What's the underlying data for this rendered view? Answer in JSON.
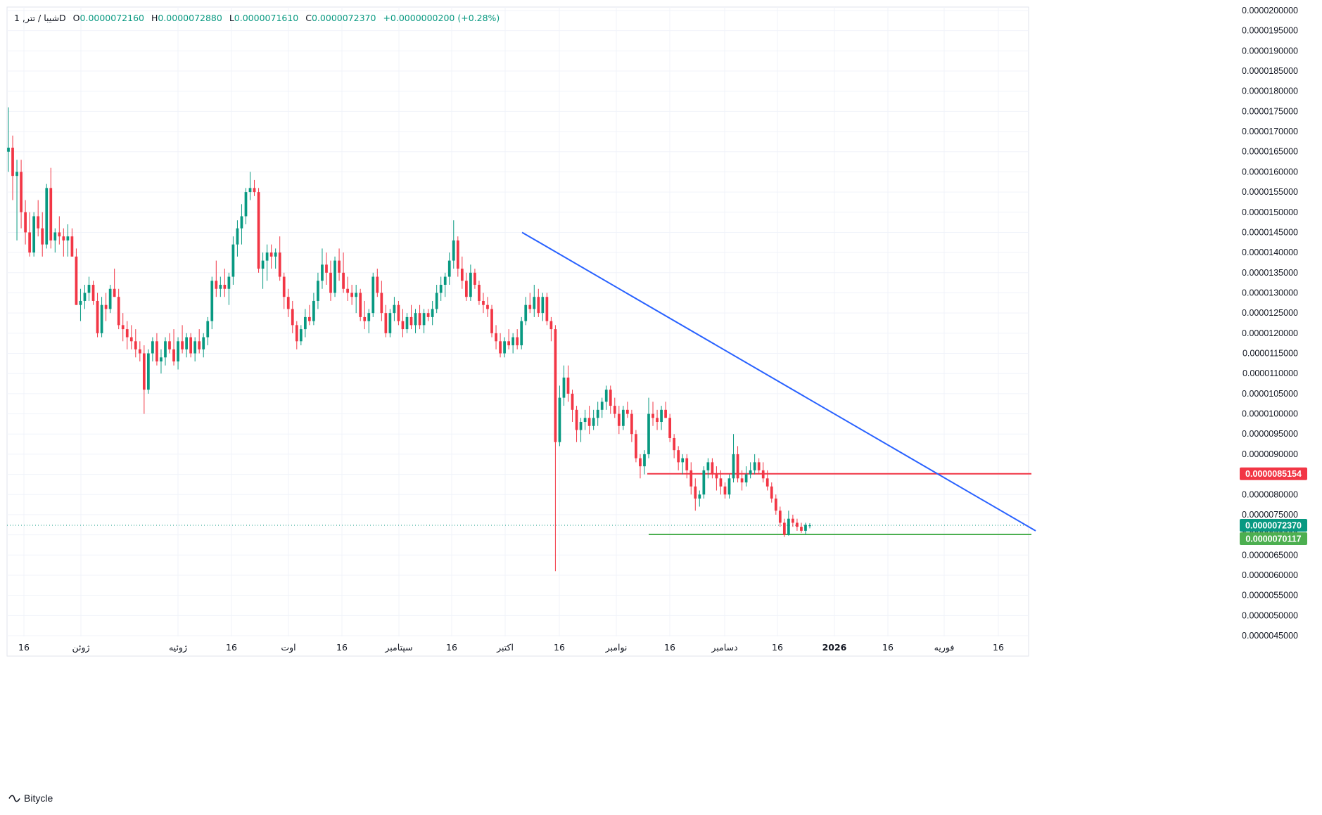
{
  "legend": {
    "symbol": "1 ,شیبا / تتر",
    "interval": "D",
    "open_label": "O",
    "open": "0.0000072160",
    "high_label": "H",
    "high": "0.0000072880",
    "low_label": "L",
    "low": "0.0000071610",
    "close_label": "C",
    "close": "0.0000072370",
    "change": "+0.0000000200 (+0.28%)"
  },
  "brand": {
    "name": "Bitycle"
  },
  "colors": {
    "up": "#089981",
    "down": "#f23645",
    "trendline": "#2962ff",
    "resistance": "#f23645",
    "support": "#4caf50"
  },
  "chart_data": {
    "type": "candlestick",
    "y_axis": {
      "min": 4.5e-06,
      "max": 2e-05,
      "tick_labels": [
        "0.0000200000",
        "0.0000195000",
        "0.0000190000",
        "0.0000185000",
        "0.0000180000",
        "0.0000175000",
        "0.0000170000",
        "0.0000165000",
        "0.0000160000",
        "0.0000155000",
        "0.0000150000",
        "0.0000145000",
        "0.0000140000",
        "0.0000135000",
        "0.0000130000",
        "0.0000125000",
        "0.0000120000",
        "0.0000115000",
        "0.0000110000",
        "0.0000105000",
        "0.0000100000",
        "0.0000095000",
        "0.0000090000",
        "0.0000085000",
        "0.0000080000",
        "0.0000075000",
        "0.0000070000",
        "0.0000065000",
        "0.0000060000",
        "0.0000055000",
        "0.0000050000",
        "0.0000045000"
      ]
    },
    "x_axis": {
      "tick_labels": [
        "16",
        "ژوئن",
        "ژوئیه",
        "16",
        "اوت",
        "16",
        "سپتامبر",
        "16",
        "اکتبر",
        "16",
        "نوامبر",
        "16",
        "دسامبر",
        "16",
        "2026",
        "16",
        "فوریه",
        "16"
      ]
    },
    "price_badges": [
      {
        "name": "resistance",
        "value": "0.0000085154"
      },
      {
        "name": "last",
        "value": "0.0000072370"
      },
      {
        "name": "support",
        "value": "0.0000070117"
      }
    ],
    "levels": {
      "resistance": 8.5154e-06,
      "support": 7.0117e-06,
      "last": 7.237e-06
    },
    "trendline": {
      "start": 1.45e-05,
      "end": 7.1e-06
    },
    "candles": [
      [
        16.5,
        17.6,
        16.0,
        16.6
      ],
      [
        16.6,
        16.9,
        15.3,
        15.9
      ],
      [
        15.9,
        16.3,
        14.3,
        16.0
      ],
      [
        16.0,
        16.3,
        14.6,
        15.0
      ],
      [
        15.0,
        15.3,
        14.2,
        14.5
      ],
      [
        14.5,
        15.0,
        13.9,
        14.0
      ],
      [
        14.0,
        15.0,
        13.9,
        14.9
      ],
      [
        14.9,
        15.3,
        14.4,
        14.6
      ],
      [
        14.6,
        15.0,
        13.9,
        14.2
      ],
      [
        14.2,
        15.7,
        14.1,
        15.6
      ],
      [
        15.6,
        16.1,
        14.1,
        14.3
      ],
      [
        14.3,
        14.6,
        14.0,
        14.5
      ],
      [
        14.5,
        14.9,
        14.2,
        14.4
      ],
      [
        14.4,
        14.6,
        13.9,
        14.3
      ],
      [
        14.3,
        14.7,
        13.9,
        14.4
      ],
      [
        14.4,
        14.6,
        13.9,
        13.9
      ],
      [
        13.9,
        14.1,
        12.7,
        12.7
      ],
      [
        12.7,
        13.1,
        12.3,
        12.8
      ],
      [
        12.8,
        13.2,
        12.6,
        13.0
      ],
      [
        13.0,
        13.4,
        12.8,
        13.2
      ],
      [
        13.2,
        13.3,
        12.7,
        12.8
      ],
      [
        12.8,
        13.0,
        11.9,
        12.0
      ],
      [
        12.0,
        12.9,
        11.9,
        12.7
      ],
      [
        12.7,
        13.0,
        12.3,
        12.6
      ],
      [
        12.6,
        13.2,
        12.5,
        13.1
      ],
      [
        13.1,
        13.6,
        12.9,
        12.9
      ],
      [
        12.9,
        13.1,
        12.1,
        12.2
      ],
      [
        12.2,
        12.5,
        11.8,
        12.1
      ],
      [
        12.1,
        12.3,
        11.6,
        11.9
      ],
      [
        11.9,
        12.2,
        11.6,
        11.8
      ],
      [
        11.8,
        12.1,
        11.4,
        11.6
      ],
      [
        11.6,
        11.8,
        11.3,
        11.5
      ],
      [
        11.5,
        11.7,
        10.0,
        10.6
      ],
      [
        10.6,
        11.6,
        10.5,
        11.5
      ],
      [
        11.5,
        11.9,
        11.3,
        11.8
      ],
      [
        11.8,
        12.0,
        11.2,
        11.3
      ],
      [
        11.3,
        11.6,
        11.0,
        11.4
      ],
      [
        11.4,
        11.9,
        11.2,
        11.8
      ],
      [
        11.8,
        12.0,
        11.5,
        11.6
      ],
      [
        11.6,
        12.1,
        11.2,
        11.3
      ],
      [
        11.3,
        11.9,
        11.1,
        11.8
      ],
      [
        11.8,
        12.2,
        11.5,
        11.6
      ],
      [
        11.6,
        12.0,
        11.4,
        11.9
      ],
      [
        11.9,
        12.0,
        11.4,
        11.5
      ],
      [
        11.5,
        11.9,
        11.3,
        11.8
      ],
      [
        11.8,
        12.1,
        11.5,
        11.6
      ],
      [
        11.6,
        12.0,
        11.4,
        11.9
      ],
      [
        11.9,
        12.4,
        11.7,
        12.3
      ],
      [
        12.3,
        13.4,
        12.1,
        13.3
      ],
      [
        13.3,
        13.8,
        12.9,
        13.1
      ],
      [
        13.1,
        13.4,
        12.9,
        13.2
      ],
      [
        13.2,
        13.6,
        12.9,
        13.1
      ],
      [
        13.1,
        13.5,
        12.7,
        13.4
      ],
      [
        13.4,
        14.4,
        13.2,
        14.2
      ],
      [
        14.2,
        14.8,
        13.9,
        14.6
      ],
      [
        14.6,
        15.2,
        14.2,
        14.9
      ],
      [
        14.9,
        15.6,
        14.7,
        15.5
      ],
      [
        15.5,
        16.0,
        15.3,
        15.6
      ],
      [
        15.6,
        15.8,
        15.4,
        15.5
      ],
      [
        15.5,
        15.6,
        13.5,
        13.6
      ],
      [
        13.6,
        14.0,
        13.1,
        13.8
      ],
      [
        13.8,
        14.2,
        13.3,
        14.0
      ],
      [
        14.0,
        14.2,
        13.6,
        13.9
      ],
      [
        13.9,
        14.1,
        13.6,
        14.0
      ],
      [
        14.0,
        14.4,
        13.3,
        13.4
      ],
      [
        13.4,
        13.5,
        12.6,
        12.9
      ],
      [
        12.9,
        13.1,
        12.4,
        12.6
      ],
      [
        12.6,
        12.8,
        12.0,
        12.2
      ],
      [
        12.2,
        12.3,
        11.6,
        11.8
      ],
      [
        11.8,
        12.2,
        11.7,
        12.1
      ],
      [
        12.1,
        12.6,
        11.9,
        12.4
      ],
      [
        12.4,
        12.7,
        12.2,
        12.3
      ],
      [
        12.3,
        13.0,
        12.2,
        12.8
      ],
      [
        12.8,
        13.5,
        12.6,
        13.3
      ],
      [
        13.3,
        14.1,
        13.1,
        13.7
      ],
      [
        13.7,
        14.0,
        13.2,
        13.5
      ],
      [
        13.5,
        13.8,
        12.8,
        13.0
      ],
      [
        13.0,
        13.9,
        12.9,
        13.8
      ],
      [
        13.8,
        14.1,
        13.3,
        13.5
      ],
      [
        13.5,
        14.0,
        13.0,
        13.1
      ],
      [
        13.1,
        13.4,
        12.8,
        13.0
      ],
      [
        13.0,
        13.2,
        12.7,
        12.9
      ],
      [
        12.9,
        13.2,
        12.5,
        13.0
      ],
      [
        13.0,
        13.1,
        12.3,
        12.4
      ],
      [
        12.4,
        12.8,
        12.1,
        12.3
      ],
      [
        12.3,
        12.6,
        12.0,
        12.5
      ],
      [
        12.5,
        13.5,
        12.4,
        13.4
      ],
      [
        13.4,
        13.6,
        12.9,
        13.0
      ],
      [
        13.0,
        13.3,
        12.3,
        12.5
      ],
      [
        12.5,
        12.7,
        11.9,
        12.0
      ],
      [
        12.0,
        12.6,
        11.9,
        12.5
      ],
      [
        12.5,
        12.9,
        12.3,
        12.7
      ],
      [
        12.7,
        12.8,
        12.2,
        12.3
      ],
      [
        12.3,
        12.6,
        11.9,
        12.1
      ],
      [
        12.1,
        12.5,
        12.0,
        12.4
      ],
      [
        12.4,
        12.7,
        12.1,
        12.2
      ],
      [
        12.2,
        12.6,
        12.0,
        12.5
      ],
      [
        12.5,
        12.7,
        12.1,
        12.2
      ],
      [
        12.2,
        12.6,
        12.0,
        12.5
      ],
      [
        12.5,
        12.6,
        12.3,
        12.4
      ],
      [
        12.4,
        12.8,
        12.2,
        12.6
      ],
      [
        12.6,
        13.2,
        12.5,
        13.0
      ],
      [
        13.0,
        13.4,
        12.8,
        13.2
      ],
      [
        13.2,
        13.5,
        12.9,
        13.4
      ],
      [
        13.4,
        14.0,
        13.2,
        13.8
      ],
      [
        13.8,
        14.8,
        13.6,
        14.3
      ],
      [
        14.3,
        14.4,
        13.4,
        13.6
      ],
      [
        13.6,
        13.9,
        13.1,
        13.3
      ],
      [
        13.3,
        13.5,
        12.8,
        12.9
      ],
      [
        12.9,
        13.7,
        12.8,
        13.5
      ],
      [
        13.5,
        13.6,
        13.1,
        13.2
      ],
      [
        13.2,
        13.3,
        12.7,
        12.8
      ],
      [
        12.8,
        13.0,
        12.5,
        12.7
      ],
      [
        12.7,
        12.9,
        12.4,
        12.6
      ],
      [
        12.6,
        12.7,
        11.9,
        12.0
      ],
      [
        12.0,
        12.2,
        11.6,
        11.8
      ],
      [
        11.8,
        12.0,
        11.4,
        11.5
      ],
      [
        11.5,
        11.9,
        11.4,
        11.8
      ],
      [
        11.8,
        12.1,
        11.6,
        11.7
      ],
      [
        11.7,
        12.0,
        11.5,
        11.9
      ],
      [
        11.9,
        12.1,
        11.6,
        11.7
      ],
      [
        11.7,
        12.4,
        11.6,
        12.3
      ],
      [
        12.3,
        12.9,
        12.2,
        12.7
      ],
      [
        12.7,
        13.0,
        12.5,
        12.6
      ],
      [
        12.6,
        13.2,
        12.4,
        12.9
      ],
      [
        12.9,
        13.1,
        12.4,
        12.5
      ],
      [
        12.5,
        13.0,
        12.3,
        12.9
      ],
      [
        12.9,
        13.0,
        12.2,
        12.3
      ],
      [
        12.3,
        12.4,
        11.8,
        12.1
      ],
      [
        12.1,
        12.2,
        6.1,
        9.3
      ],
      [
        9.3,
        10.7,
        9.2,
        10.4
      ],
      [
        10.4,
        11.2,
        10.2,
        10.9
      ],
      [
        10.9,
        11.2,
        10.3,
        10.5
      ],
      [
        10.5,
        10.6,
        9.8,
        10.1
      ],
      [
        10.1,
        10.2,
        9.3,
        9.6
      ],
      [
        9.6,
        9.9,
        9.3,
        9.8
      ],
      [
        9.8,
        10.1,
        9.6,
        9.9
      ],
      [
        9.9,
        10.2,
        9.5,
        9.7
      ],
      [
        9.7,
        10.1,
        9.6,
        9.9
      ],
      [
        9.9,
        10.3,
        9.7,
        10.1
      ],
      [
        10.1,
        10.4,
        9.9,
        10.3
      ],
      [
        10.3,
        10.7,
        10.1,
        10.6
      ],
      [
        10.6,
        10.7,
        10.0,
        10.2
      ],
      [
        10.2,
        10.4,
        9.9,
        10.0
      ],
      [
        10.0,
        10.2,
        9.5,
        9.7
      ],
      [
        9.7,
        10.2,
        9.6,
        10.1
      ],
      [
        10.1,
        10.3,
        9.9,
        10.0
      ],
      [
        10.0,
        10.1,
        9.3,
        9.5
      ],
      [
        9.5,
        9.6,
        8.8,
        8.9
      ],
      [
        8.9,
        9.0,
        8.4,
        8.7
      ],
      [
        8.7,
        9.1,
        8.5,
        9.0
      ],
      [
        9.0,
        10.4,
        8.9,
        10.0
      ],
      [
        10.0,
        10.3,
        9.7,
        9.9
      ],
      [
        9.9,
        10.1,
        9.6,
        9.8
      ],
      [
        9.8,
        10.2,
        9.6,
        10.1
      ],
      [
        10.1,
        10.3,
        9.9,
        9.9
      ],
      [
        9.9,
        10.0,
        9.3,
        9.4
      ],
      [
        9.4,
        9.5,
        8.9,
        9.1
      ],
      [
        9.1,
        9.2,
        8.6,
        8.8
      ],
      [
        8.8,
        9.0,
        8.5,
        8.9
      ],
      [
        8.9,
        9.0,
        8.4,
        8.6
      ],
      [
        8.6,
        8.8,
        8.0,
        8.2
      ],
      [
        8.2,
        8.4,
        7.6,
        7.9
      ],
      [
        7.9,
        8.1,
        7.7,
        8.0
      ],
      [
        8.0,
        8.7,
        7.9,
        8.6
      ],
      [
        8.6,
        8.9,
        8.4,
        8.8
      ],
      [
        8.8,
        8.9,
        8.4,
        8.5
      ],
      [
        8.5,
        8.7,
        8.1,
        8.4
      ],
      [
        8.4,
        8.6,
        8.0,
        8.2
      ],
      [
        8.2,
        8.3,
        7.9,
        8.0
      ],
      [
        8.0,
        8.5,
        7.9,
        8.4
      ],
      [
        8.4,
        9.5,
        8.3,
        9.0
      ],
      [
        9.0,
        9.2,
        8.3,
        8.4
      ],
      [
        8.4,
        8.6,
        8.1,
        8.3
      ],
      [
        8.3,
        8.7,
        8.2,
        8.5
      ],
      [
        8.5,
        8.8,
        8.4,
        8.6
      ],
      [
        8.6,
        9.0,
        8.5,
        8.8
      ],
      [
        8.8,
        8.9,
        8.5,
        8.6
      ],
      [
        8.6,
        8.8,
        8.3,
        8.4
      ],
      [
        8.4,
        8.6,
        8.1,
        8.2
      ],
      [
        8.2,
        8.3,
        7.8,
        7.9
      ],
      [
        7.9,
        8.0,
        7.5,
        7.6
      ],
      [
        7.6,
        7.7,
        7.2,
        7.3
      ],
      [
        7.3,
        7.4,
        6.95,
        7.0
      ],
      [
        7.0,
        7.6,
        6.98,
        7.4
      ],
      [
        7.4,
        7.5,
        7.2,
        7.3
      ],
      [
        7.3,
        7.4,
        7.1,
        7.2
      ],
      [
        7.2,
        7.3,
        7.05,
        7.1
      ],
      [
        7.1,
        7.3,
        7.0,
        7.25
      ],
      [
        7.216,
        7.288,
        7.161,
        7.237
      ]
    ]
  }
}
